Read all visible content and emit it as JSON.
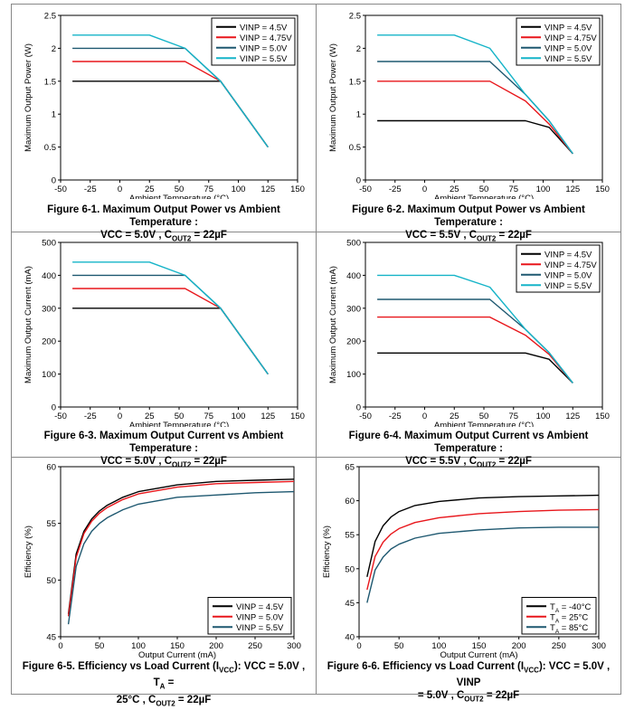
{
  "chart_data": [
    {
      "type": "line",
      "title": "Figure 6-1. Maximum Output Power vs Ambient Temperature :",
      "caption_line2": "VCC = 5.0V , C_OUT2 = 22µF",
      "xlabel": "Ambient Temperature (°C)",
      "ylabel": "Maximum Output Power (W)",
      "xlim": [
        -50,
        150
      ],
      "ylim": [
        0,
        2.5
      ],
      "xticks": [
        "-50",
        "-25",
        "0",
        "25",
        "50",
        "75",
        "100",
        "125",
        "150"
      ],
      "yticks": [
        "0",
        "0.5",
        "1",
        "1.5",
        "2",
        "2.5"
      ],
      "legend_pos": "top-right",
      "series": [
        {
          "name": "VINP = 4.5V",
          "color": "#000000",
          "x": [
            -40,
            85,
            125
          ],
          "y": [
            1.5,
            1.5,
            0.5
          ]
        },
        {
          "name": "VINP = 4.75V",
          "color": "#e8161b",
          "x": [
            -40,
            55,
            85,
            125
          ],
          "y": [
            1.8,
            1.8,
            1.5,
            0.5
          ]
        },
        {
          "name": "VINP = 5.0V",
          "color": "#1e5870",
          "x": [
            -40,
            55,
            85,
            125
          ],
          "y": [
            2.0,
            2.0,
            1.5,
            0.5
          ]
        },
        {
          "name": "VINP = 5.5V",
          "color": "#16b4c8",
          "x": [
            -40,
            25,
            55,
            85,
            125
          ],
          "y": [
            2.2,
            2.2,
            2.0,
            1.5,
            0.5
          ]
        }
      ]
    },
    {
      "type": "line",
      "title": "Figure 6-2. Maximum Output Power vs Ambient Temperature :",
      "caption_line2": "VCC = 5.5V , C_OUT2 = 22µF",
      "xlabel": "Ambient Temperature (°C)",
      "ylabel": "Maximum Output Power (W)",
      "xlim": [
        -50,
        150
      ],
      "ylim": [
        0,
        2.5
      ],
      "xticks": [
        "-50",
        "-25",
        "0",
        "25",
        "50",
        "75",
        "100",
        "125",
        "150"
      ],
      "yticks": [
        "0",
        "0.5",
        "1",
        "1.5",
        "2",
        "2.5"
      ],
      "legend_pos": "top-right",
      "series": [
        {
          "name": "VINP = 4.5V",
          "color": "#000000",
          "x": [
            -40,
            85,
            105,
            125
          ],
          "y": [
            0.9,
            0.9,
            0.8,
            0.4
          ]
        },
        {
          "name": "VINP = 4.75V",
          "color": "#e8161b",
          "x": [
            -40,
            55,
            85,
            105,
            125
          ],
          "y": [
            1.5,
            1.5,
            1.2,
            0.85,
            0.4
          ]
        },
        {
          "name": "VINP = 5.0V",
          "color": "#1e5870",
          "x": [
            -40,
            55,
            85,
            105,
            125
          ],
          "y": [
            1.8,
            1.8,
            1.3,
            0.9,
            0.4
          ]
        },
        {
          "name": "VINP = 5.5V",
          "color": "#16b4c8",
          "x": [
            -40,
            25,
            55,
            85,
            105,
            125
          ],
          "y": [
            2.2,
            2.2,
            2.0,
            1.3,
            0.9,
            0.4
          ]
        }
      ]
    },
    {
      "type": "line",
      "title": "Figure 6-3. Maximum Output Current vs Ambient Temperature :",
      "caption_line2": "VCC = 5.0V , C_OUT2 = 22µF",
      "xlabel": "Ambient Temperature (°C)",
      "ylabel": "Maximum Output Current (mA)",
      "xlim": [
        -50,
        150
      ],
      "ylim": [
        0,
        500
      ],
      "xticks": [
        "-50",
        "-25",
        "0",
        "25",
        "50",
        "75",
        "100",
        "125",
        "150"
      ],
      "yticks": [
        "0",
        "100",
        "200",
        "300",
        "400",
        "500"
      ],
      "legend_pos": "none",
      "series": [
        {
          "name": "VINP = 4.5V",
          "color": "#000000",
          "x": [
            -40,
            85,
            125
          ],
          "y": [
            300,
            300,
            100
          ]
        },
        {
          "name": "VINP = 4.75V",
          "color": "#e8161b",
          "x": [
            -40,
            55,
            85,
            125
          ],
          "y": [
            360,
            360,
            300,
            100
          ]
        },
        {
          "name": "VINP = 5.0V",
          "color": "#1e5870",
          "x": [
            -40,
            55,
            85,
            125
          ],
          "y": [
            400,
            400,
            300,
            100
          ]
        },
        {
          "name": "VINP = 5.5V",
          "color": "#16b4c8",
          "x": [
            -40,
            25,
            55,
            85,
            125
          ],
          "y": [
            440,
            440,
            400,
            300,
            100
          ]
        }
      ]
    },
    {
      "type": "line",
      "title": "Figure 6-4. Maximum Output Current vs Ambient Temperature :",
      "caption_line2": "VCC = 5.5V , C_OUT2 = 22µF",
      "xlabel": "Ambient Temperature (°C)",
      "ylabel": "Maximum Output Current (mA)",
      "xlim": [
        -50,
        150
      ],
      "ylim": [
        0,
        500
      ],
      "xticks": [
        "-50",
        "-25",
        "0",
        "25",
        "50",
        "75",
        "100",
        "125",
        "150"
      ],
      "yticks": [
        "0",
        "100",
        "200",
        "300",
        "400",
        "500"
      ],
      "legend_pos": "top-right",
      "series": [
        {
          "name": "VINP = 4.5V",
          "color": "#000000",
          "x": [
            -40,
            85,
            105,
            125
          ],
          "y": [
            164,
            164,
            145,
            73
          ]
        },
        {
          "name": "VINP = 4.75V",
          "color": "#e8161b",
          "x": [
            -40,
            55,
            85,
            105,
            125
          ],
          "y": [
            273,
            273,
            218,
            160,
            73
          ]
        },
        {
          "name": "VINP = 5.0V",
          "color": "#1e5870",
          "x": [
            -40,
            55,
            85,
            105,
            125
          ],
          "y": [
            327,
            327,
            236,
            165,
            73
          ]
        },
        {
          "name": "VINP = 5.5V",
          "color": "#16b4c8",
          "x": [
            -40,
            25,
            55,
            85,
            105,
            125
          ],
          "y": [
            400,
            400,
            364,
            236,
            165,
            73
          ]
        }
      ]
    },
    {
      "type": "line",
      "title": "Figure 6-5. Efficiency vs Load Current (I_VCC): VCC = 5.0V , T_A =",
      "caption_line2": "25°C , C_OUT2 = 22µF",
      "xlabel": "Output Current (mA)",
      "ylabel": "Efficiency (%)",
      "xlim": [
        0,
        300
      ],
      "ylim": [
        45,
        60
      ],
      "xticks": [
        "0",
        "50",
        "100",
        "150",
        "200",
        "250",
        "300"
      ],
      "yticks": [
        "45",
        "50",
        "55",
        "60"
      ],
      "legend_pos": "bottom-right",
      "series": [
        {
          "name": "VINP = 4.5V",
          "color": "#000000",
          "x": [
            10,
            20,
            30,
            40,
            50,
            60,
            80,
            100,
            150,
            200,
            250,
            300
          ],
          "y": [
            47.0,
            52.3,
            54.3,
            55.4,
            56.1,
            56.6,
            57.3,
            57.8,
            58.4,
            58.7,
            58.8,
            58.9
          ]
        },
        {
          "name": "VINP = 5.0V",
          "color": "#e8161b",
          "x": [
            10,
            20,
            30,
            40,
            50,
            60,
            80,
            100,
            150,
            200,
            250,
            300
          ],
          "y": [
            46.8,
            52.0,
            54.1,
            55.2,
            55.9,
            56.4,
            57.1,
            57.6,
            58.2,
            58.5,
            58.6,
            58.7
          ]
        },
        {
          "name": "VINP = 5.5V",
          "color": "#1e5870",
          "x": [
            10,
            20,
            30,
            40,
            50,
            60,
            80,
            100,
            150,
            200,
            250,
            300
          ],
          "y": [
            46.1,
            51.2,
            53.2,
            54.3,
            55.0,
            55.5,
            56.2,
            56.7,
            57.3,
            57.5,
            57.7,
            57.8
          ]
        }
      ]
    },
    {
      "type": "line",
      "title": "Figure 6-6. Efficiency vs Load Current (I_VCC): VCC = 5.0V , VINP",
      "caption_line2": "= 5.0V , C_OUT2 = 22µF",
      "xlabel": "Output Current (mA)",
      "ylabel": "Efficiency (%)",
      "xlim": [
        0,
        300
      ],
      "ylim": [
        40,
        65
      ],
      "xticks": [
        "0",
        "50",
        "100",
        "150",
        "200",
        "250",
        "300"
      ],
      "yticks": [
        "40",
        "45",
        "50",
        "55",
        "60",
        "65"
      ],
      "legend_pos": "bottom-right",
      "series": [
        {
          "name": "T_A = -40°C",
          "color": "#000000",
          "x": [
            10,
            20,
            30,
            40,
            50,
            70,
            100,
            150,
            200,
            250,
            300
          ],
          "y": [
            48.8,
            54.0,
            56.3,
            57.6,
            58.4,
            59.3,
            59.9,
            60.4,
            60.6,
            60.7,
            60.8
          ]
        },
        {
          "name": "T_A = 25°C",
          "color": "#e8161b",
          "x": [
            10,
            20,
            30,
            40,
            50,
            70,
            100,
            150,
            200,
            250,
            300
          ],
          "y": [
            46.9,
            51.8,
            53.9,
            55.1,
            55.9,
            56.8,
            57.5,
            58.1,
            58.4,
            58.6,
            58.7
          ]
        },
        {
          "name": "T_A = 85°C",
          "color": "#1e5870",
          "x": [
            10,
            20,
            30,
            40,
            50,
            70,
            100,
            150,
            200,
            250,
            300
          ],
          "y": [
            45.0,
            49.8,
            51.7,
            52.9,
            53.6,
            54.5,
            55.2,
            55.7,
            56.0,
            56.1,
            56.1
          ]
        }
      ]
    }
  ]
}
